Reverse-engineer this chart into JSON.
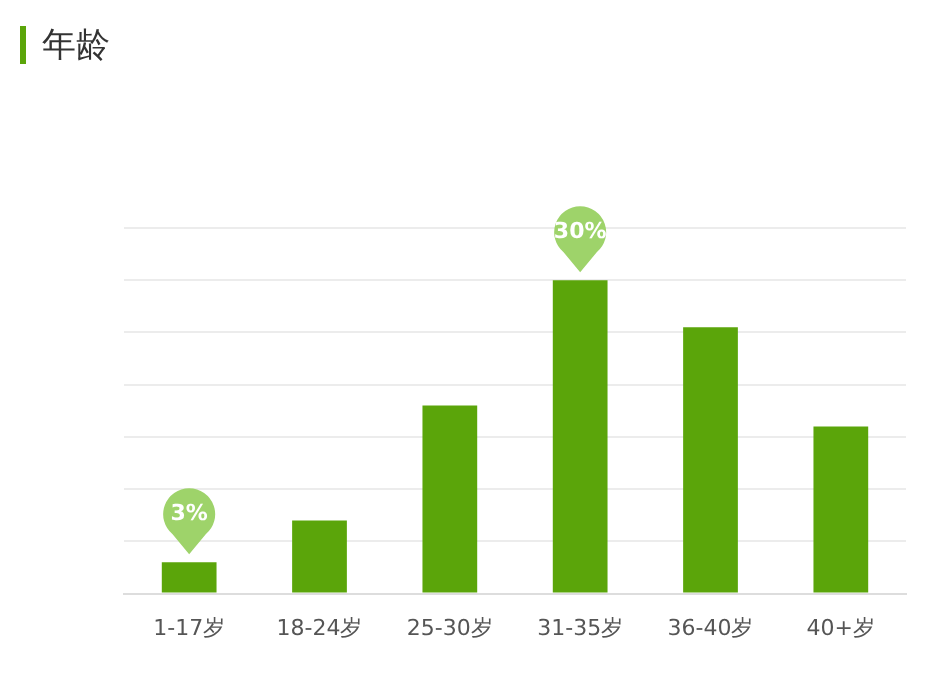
{
  "chart_data": {
    "type": "bar",
    "title": "年龄",
    "categories": [
      "1-17岁",
      "18-24岁",
      "25-30岁",
      "31-35岁",
      "36-40岁",
      "40+岁"
    ],
    "values": [
      3,
      7,
      18,
      30,
      25.5,
      16
    ],
    "value_labels": [
      "3%",
      null,
      null,
      "30%",
      null,
      null
    ],
    "color": "#5ba50a",
    "ylim": [
      0,
      35
    ],
    "yticks": [
      0,
      {
        "value": 5,
        "label": null
      },
      {
        "value": 10,
        "label": null
      },
      {
        "value": 15,
        "label": null
      },
      {
        "value": 20,
        "label": null
      },
      {
        "value": 25,
        "label": null
      },
      {
        "value": 30,
        "label": null
      },
      {
        "value": 35,
        "label": null
      }
    ],
    "grid": "y",
    "tick_labels": "x"
  }
}
